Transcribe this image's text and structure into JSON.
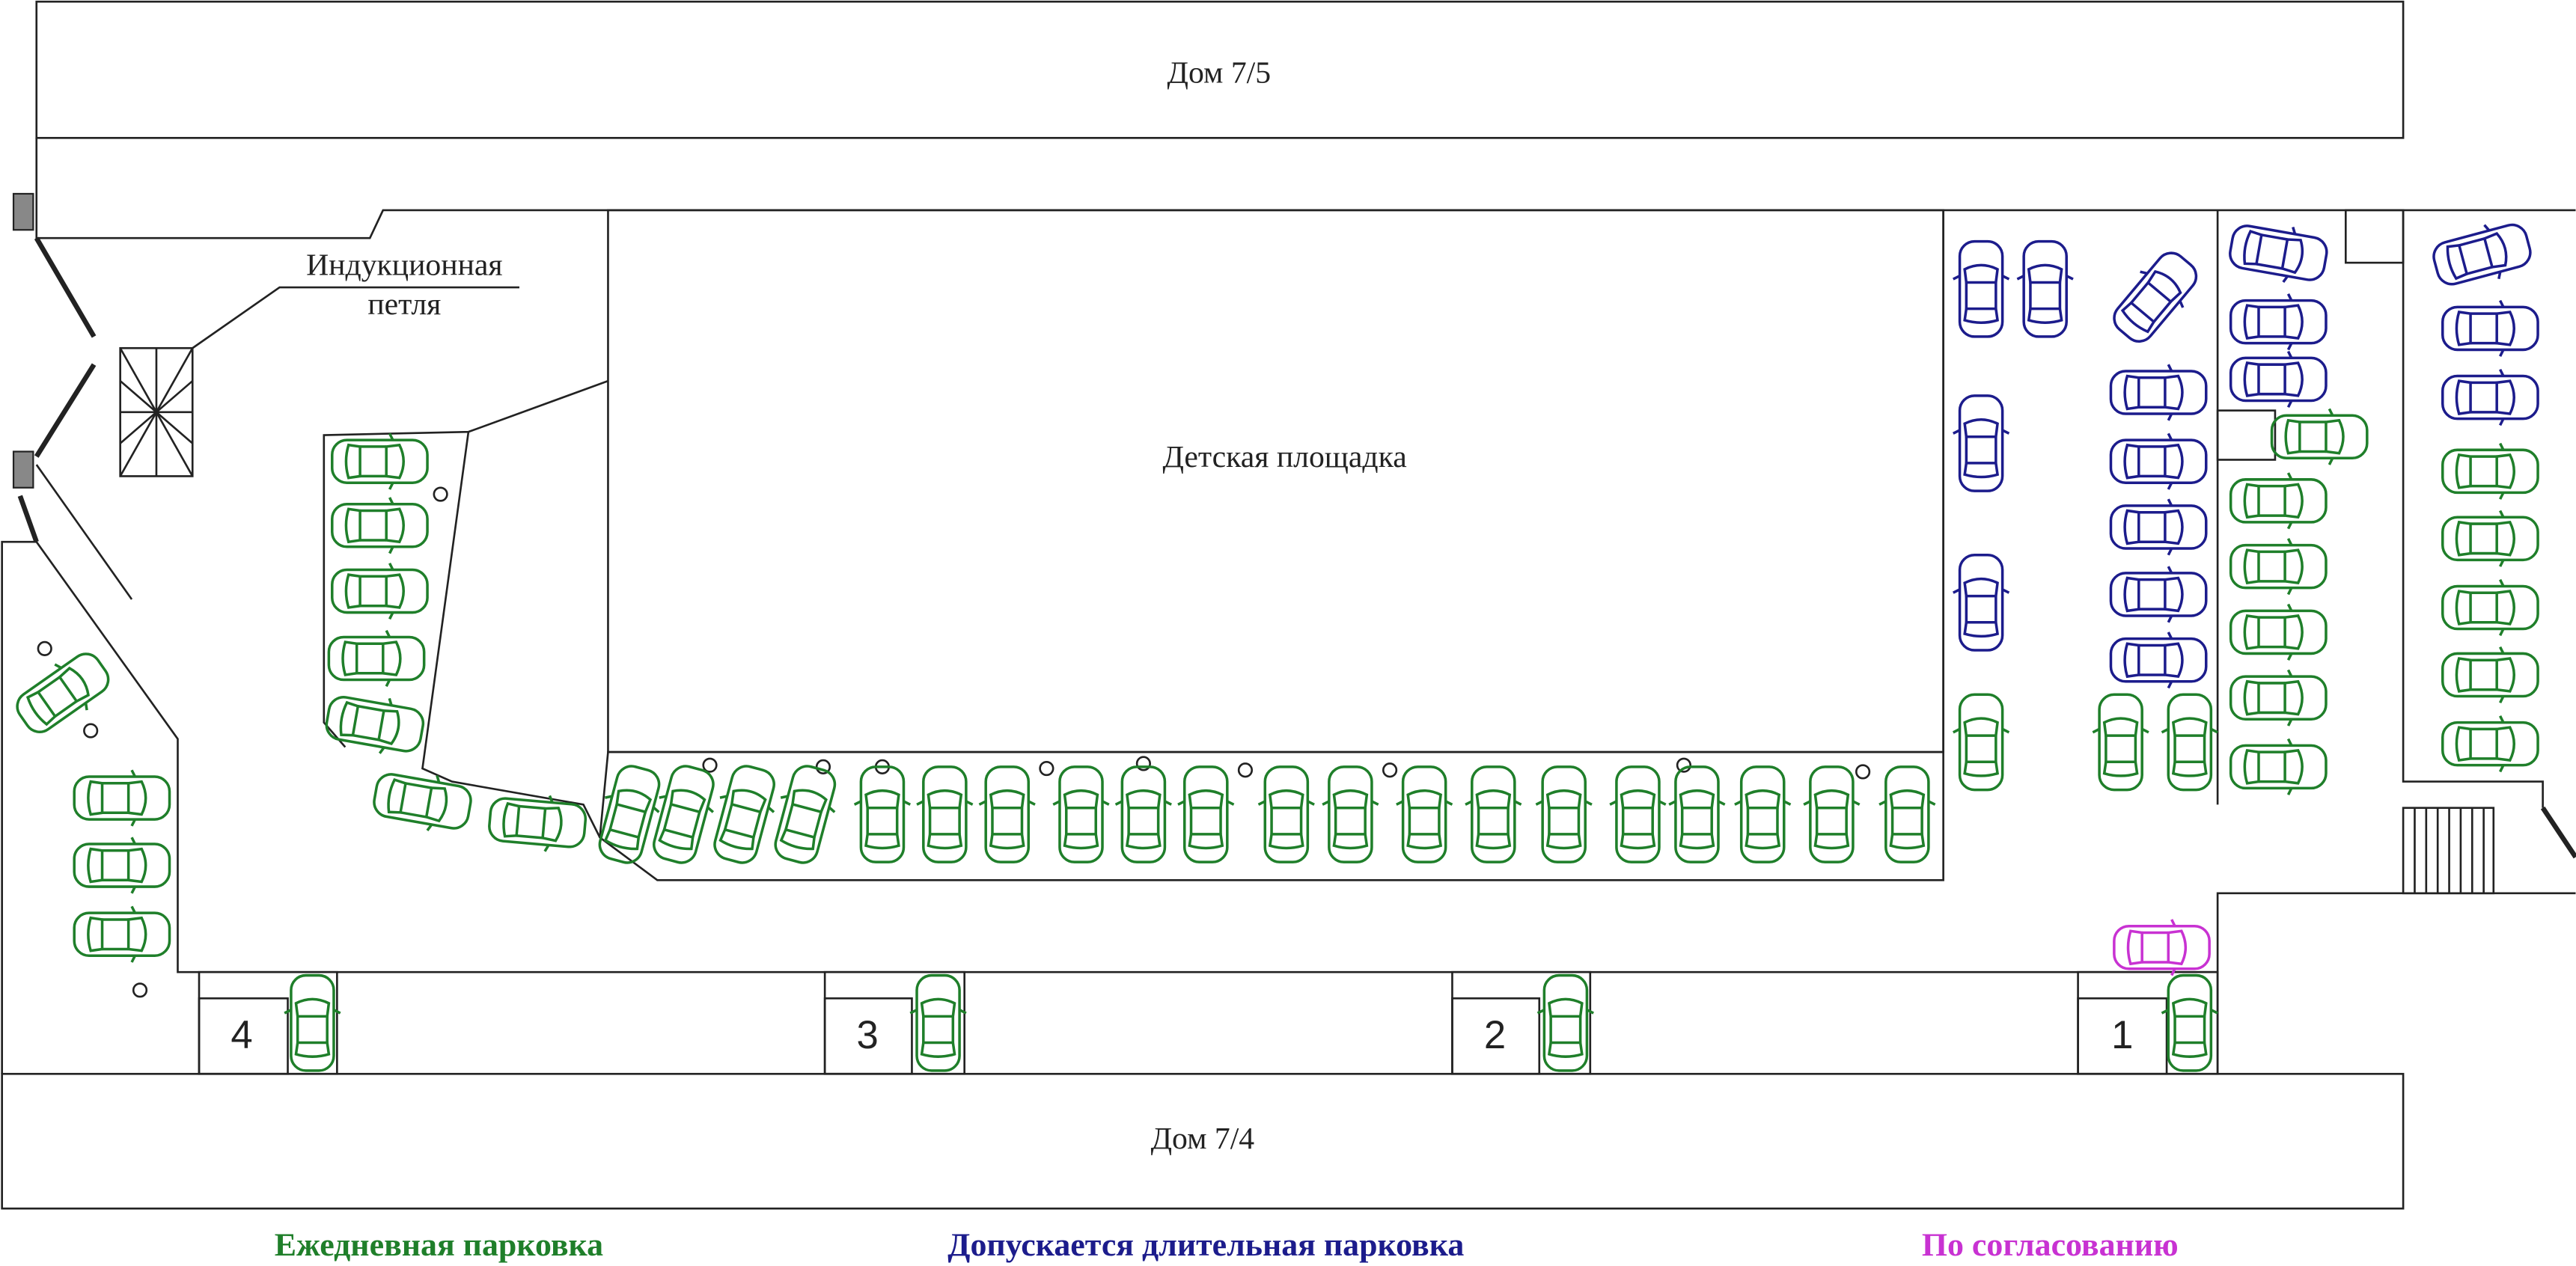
{
  "buildings": {
    "top": "Дом 7/5",
    "bottom": "Дом 7/4"
  },
  "playground": "Детская площадка",
  "induction_loop": {
    "line1": "Индукционная",
    "line2": "петля"
  },
  "entrances": [
    "4",
    "3",
    "2",
    "1"
  ],
  "legend": [
    "Ежедневная парковка",
    "Допускается длительная парковка",
    "По согласованию"
  ]
}
